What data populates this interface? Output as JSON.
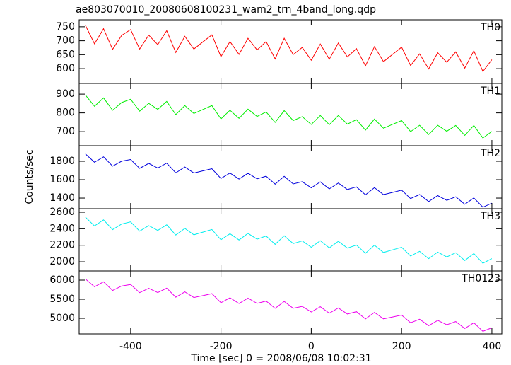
{
  "chart_data": [
    {
      "type": "line",
      "title": "ae803070010_20080608100231_wam2_trn_4band_long.qdp",
      "x": [
        -500,
        -480,
        -460,
        -440,
        -420,
        -400,
        -380,
        -360,
        -340,
        -320,
        -300,
        -280,
        -260,
        -240,
        -220,
        -200,
        -180,
        -160,
        -140,
        -120,
        -100,
        -80,
        -60,
        -40,
        -20,
        0,
        20,
        40,
        60,
        80,
        100,
        120,
        140,
        160,
        180,
        200,
        220,
        240,
        260,
        280,
        300,
        320,
        340,
        360,
        380,
        400
      ],
      "series": [
        {
          "name": "TH0",
          "color": "#ff0000",
          "values": [
            755,
            689,
            743,
            669,
            719,
            740,
            670,
            720,
            686,
            736,
            658,
            716,
            670,
            696,
            721,
            643,
            697,
            651,
            709,
            667,
            697,
            635,
            709,
            650,
            676,
            630,
            688,
            634,
            692,
            642,
            672,
            610,
            679,
            625,
            651,
            677,
            611,
            653,
            599,
            657,
            623,
            660,
            602,
            664,
            590,
            632
          ]
        }
      ],
      "xlim": [
        -514,
        422
      ],
      "ylim": [
        547,
        775
      ],
      "yticks": [
        600,
        650,
        700,
        750
      ]
    },
    {
      "type": "line",
      "x": [
        -500,
        -480,
        -460,
        -440,
        -420,
        -400,
        -380,
        -360,
        -340,
        -320,
        -300,
        -280,
        -260,
        -240,
        -220,
        -200,
        -180,
        -160,
        -140,
        -120,
        -100,
        -80,
        -60,
        -40,
        -20,
        0,
        20,
        40,
        60,
        80,
        100,
        120,
        140,
        160,
        180,
        200,
        220,
        240,
        260,
        280,
        300,
        320,
        340,
        360,
        380,
        400
      ],
      "series": [
        {
          "name": "TH1",
          "color": "#00ee00",
          "values": [
            895,
            835,
            880,
            814,
            855,
            873,
            809,
            851,
            819,
            861,
            791,
            839,
            797,
            818,
            839,
            768,
            814,
            771,
            820,
            781,
            805,
            749,
            812,
            759,
            780,
            738,
            786,
            737,
            786,
            740,
            764,
            708,
            767,
            718,
            739,
            759,
            700,
            734,
            685,
            734,
            702,
            733,
            680,
            733,
            666,
            701
          ]
        }
      ],
      "xlim": [
        -514,
        422
      ],
      "ylim": [
        625,
        957
      ],
      "yticks": [
        700,
        800,
        900
      ]
    },
    {
      "type": "line",
      "ylabel": "Counts/sec",
      "x": [
        -500,
        -480,
        -460,
        -440,
        -420,
        -400,
        -380,
        -360,
        -340,
        -320,
        -300,
        -280,
        -260,
        -240,
        -220,
        -200,
        -180,
        -160,
        -140,
        -120,
        -100,
        -80,
        -60,
        -40,
        -20,
        0,
        20,
        40,
        60,
        80,
        100,
        120,
        140,
        160,
        180,
        200,
        220,
        240,
        260,
        280,
        300,
        320,
        340,
        360,
        380,
        400
      ],
      "series": [
        {
          "name": "TH2",
          "color": "#0000dd",
          "values": [
            1880,
            1789,
            1848,
            1747,
            1801,
            1819,
            1723,
            1777,
            1726,
            1780,
            1674,
            1738,
            1672,
            1696,
            1719,
            1613,
            1672,
            1606,
            1670,
            1609,
            1638,
            1552,
            1636,
            1554,
            1578,
            1512,
            1576,
            1500,
            1564,
            1493,
            1522,
            1436,
            1514,
            1438,
            1462,
            1486,
            1395,
            1439,
            1363,
            1427,
            1376,
            1414,
            1333,
            1402,
            1301,
            1345
          ]
        }
      ],
      "xlim": [
        -514,
        422
      ],
      "ylim": [
        1285,
        1969
      ],
      "yticks": [
        1400,
        1600,
        1800
      ]
    },
    {
      "type": "line",
      "x": [
        -500,
        -480,
        -460,
        -440,
        -420,
        -400,
        -380,
        -360,
        -340,
        -320,
        -300,
        -280,
        -260,
        -240,
        -220,
        -200,
        -180,
        -160,
        -140,
        -120,
        -100,
        -80,
        -60,
        -40,
        -20,
        0,
        20,
        40,
        60,
        80,
        100,
        120,
        140,
        160,
        180,
        200,
        220,
        240,
        260,
        280,
        300,
        320,
        340,
        360,
        380,
        400
      ],
      "series": [
        {
          "name": "TH3",
          "color": "#00eeee",
          "values": [
            2540,
            2434,
            2508,
            2389,
            2457,
            2483,
            2371,
            2438,
            2380,
            2448,
            2324,
            2404,
            2327,
            2359,
            2391,
            2267,
            2340,
            2264,
            2344,
            2274,
            2312,
            2211,
            2315,
            2221,
            2253,
            2176,
            2256,
            2168,
            2248,
            2166,
            2203,
            2103,
            2201,
            2113,
            2144,
            2176,
            2070,
            2126,
            2038,
            2117,
            2059,
            2109,
            2015,
            2100,
            1982,
            2038
          ]
        }
      ],
      "xlim": [
        -514,
        422
      ],
      "ylim": [
        1889,
        2643
      ],
      "yticks": [
        2000,
        2200,
        2400,
        2600
      ]
    },
    {
      "type": "line",
      "xlabel": "Time [sec] 0 = 2008/06/08 10:02:31",
      "x": [
        -500,
        -480,
        -460,
        -440,
        -420,
        -400,
        -380,
        -360,
        -340,
        -320,
        -300,
        -280,
        -260,
        -240,
        -220,
        -200,
        -180,
        -160,
        -140,
        -120,
        -100,
        -80,
        -60,
        -40,
        -20,
        0,
        20,
        40,
        60,
        80,
        100,
        120,
        140,
        160,
        180,
        200,
        220,
        240,
        260,
        280,
        300,
        320,
        340,
        360,
        380,
        400
      ],
      "series": [
        {
          "name": "TH0123",
          "color": "#ee00ee",
          "values": [
            6030,
            5827,
            5955,
            5730,
            5846,
            5886,
            5672,
            5788,
            5674,
            5790,
            5554,
            5693,
            5545,
            5595,
            5646,
            5410,
            5537,
            5390,
            5528,
            5391,
            5453,
            5261,
            5443,
            5263,
            5313,
            5165,
            5304,
            5134,
            5272,
            5114,
            5175,
            4983,
            5155,
            4985,
            5035,
            5086,
            4883,
            4977,
            4808,
            4946,
            4831,
            4915,
            4734,
            4883,
            4659,
            4753
          ]
        }
      ],
      "xlim": [
        -514,
        422
      ],
      "ylim": [
        4593,
        6241
      ],
      "yticks": [
        5000,
        5500,
        6000
      ],
      "xticks": [
        -400,
        -200,
        0,
        200,
        400
      ]
    }
  ]
}
